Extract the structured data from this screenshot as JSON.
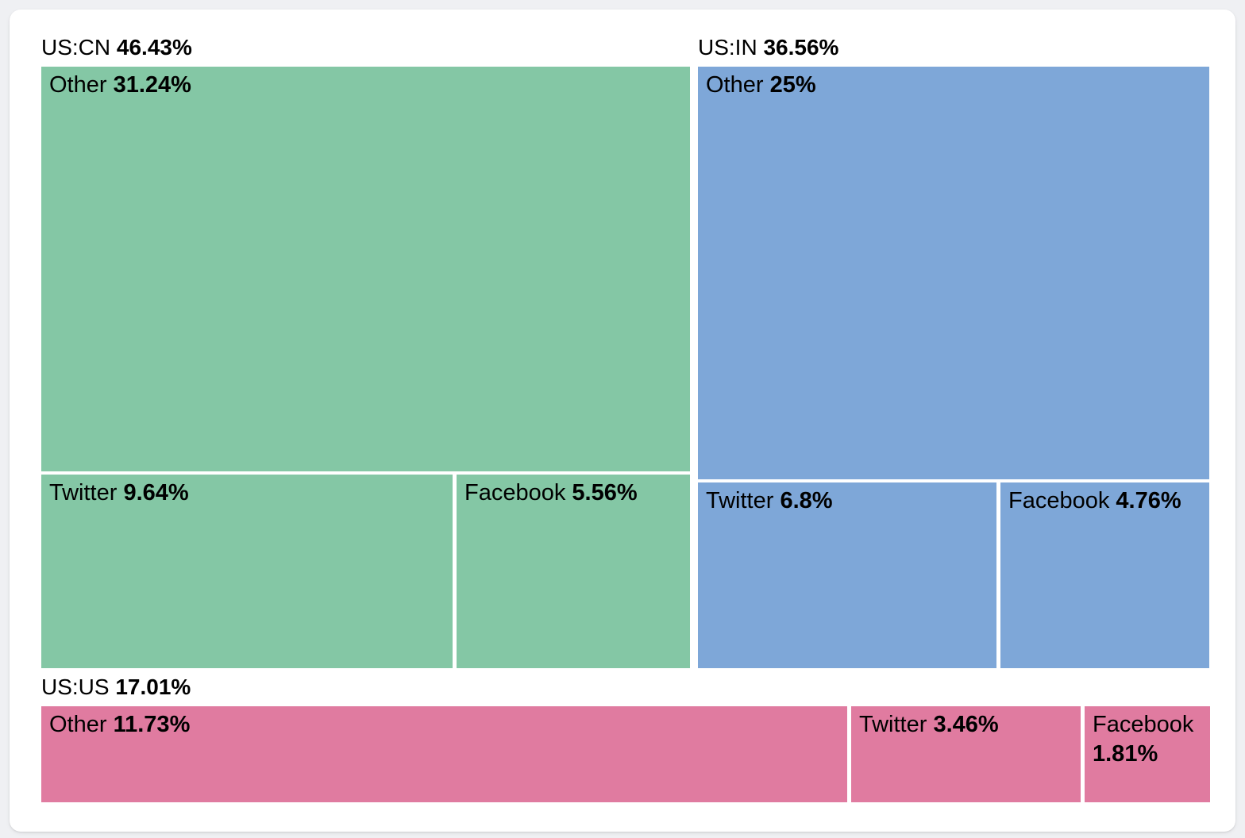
{
  "page": {
    "background": "#eff0f3",
    "card_background": "#ffffff"
  },
  "chart_data": {
    "type": "treemap",
    "title": "",
    "unit": "%",
    "legend": "none",
    "grid": false,
    "groups": [
      {
        "label": "US:CN",
        "value": 46.43,
        "display": "46.43%",
        "color": "#84c7a5",
        "children": [
          {
            "label": "Other",
            "value": 31.24,
            "display": "31.24%"
          },
          {
            "label": "Twitter",
            "value": 9.64,
            "display": "9.64%"
          },
          {
            "label": "Facebook",
            "value": 5.56,
            "display": "5.56%"
          }
        ]
      },
      {
        "label": "US:IN",
        "value": 36.56,
        "display": "36.56%",
        "color": "#7ea7d8",
        "children": [
          {
            "label": "Other",
            "value": 25,
            "display": "25%"
          },
          {
            "label": "Twitter",
            "value": 6.8,
            "display": "6.8%"
          },
          {
            "label": "Facebook",
            "value": 4.76,
            "display": "4.76%"
          }
        ]
      },
      {
        "label": "US:US",
        "value": 17.01,
        "display": "17.01%",
        "color": "#e07ba0",
        "children": [
          {
            "label": "Other",
            "value": 11.73,
            "display": "11.73%"
          },
          {
            "label": "Twitter",
            "value": 3.46,
            "display": "3.46%"
          },
          {
            "label": "Facebook",
            "value": 1.81,
            "display": "1.81%"
          }
        ]
      }
    ]
  }
}
